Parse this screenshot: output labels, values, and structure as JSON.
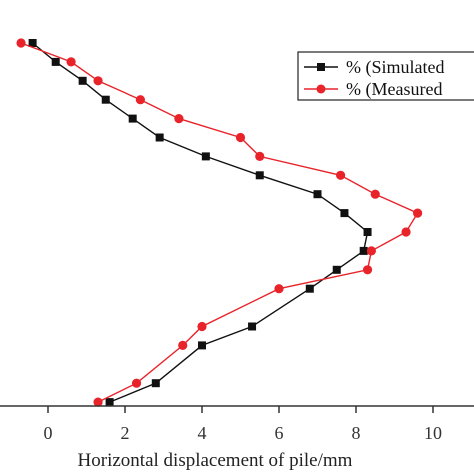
{
  "chart_data": {
    "type": "line",
    "xlabel": "Horizontal displacement of pile/mm",
    "ylabel": "",
    "xlim": [
      -1,
      10.5
    ],
    "x_ticks": [
      0,
      2,
      4,
      6,
      8,
      10
    ],
    "point_index_range": [
      1,
      22
    ],
    "grid": false,
    "legend_position": "top-right",
    "series": [
      {
        "name": "% (Simulated",
        "color": "#111111",
        "marker": "square",
        "x": [
          -0.4,
          0.2,
          0.9,
          1.5,
          2.2,
          2.9,
          4.1,
          5.5,
          7.0,
          7.7,
          8.3,
          8.2,
          7.5,
          6.8,
          5.3,
          4.0,
          2.8,
          1.6
        ],
        "point_index": [
          1,
          2,
          3,
          4,
          5,
          6,
          7,
          8,
          9,
          10,
          11,
          12,
          13,
          14,
          16,
          17,
          19,
          20
        ]
      },
      {
        "name": "% (Measured",
        "color": "#e8232a",
        "marker": "circle",
        "x": [
          -0.7,
          0.6,
          1.3,
          2.4,
          3.4,
          5.0,
          5.5,
          7.6,
          8.5,
          9.6,
          9.3,
          8.4,
          8.3,
          6.0,
          4.0,
          3.5,
          2.3,
          1.3
        ],
        "point_index": [
          1,
          2,
          3,
          4,
          5,
          6,
          7,
          8,
          9,
          10,
          11,
          12,
          13,
          14,
          16,
          17,
          19,
          20
        ]
      }
    ]
  }
}
